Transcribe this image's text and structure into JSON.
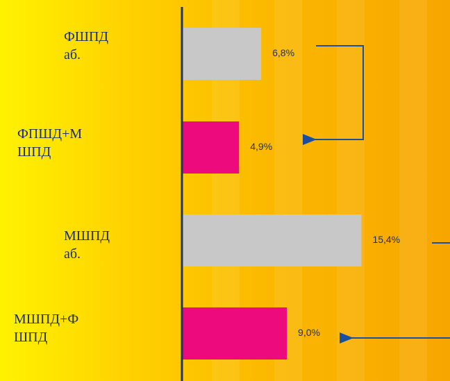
{
  "chart_data": {
    "type": "bar",
    "orientation": "horizontal",
    "categories": [
      "ФШПД\nаб.",
      "ФПШД+М\nШПД",
      "МШПД\nаб.",
      "МШПД+Ф\nШПД"
    ],
    "values": [
      6.8,
      4.9,
      15.4,
      9.0
    ],
    "value_labels": [
      "6,8%",
      "4,9%",
      "15,4%",
      "9,0%"
    ],
    "colors": [
      "#c8c8c8",
      "#ec0a7d",
      "#c8c8c8",
      "#ec0a7d"
    ],
    "xlim": [
      0,
      23
    ]
  }
}
